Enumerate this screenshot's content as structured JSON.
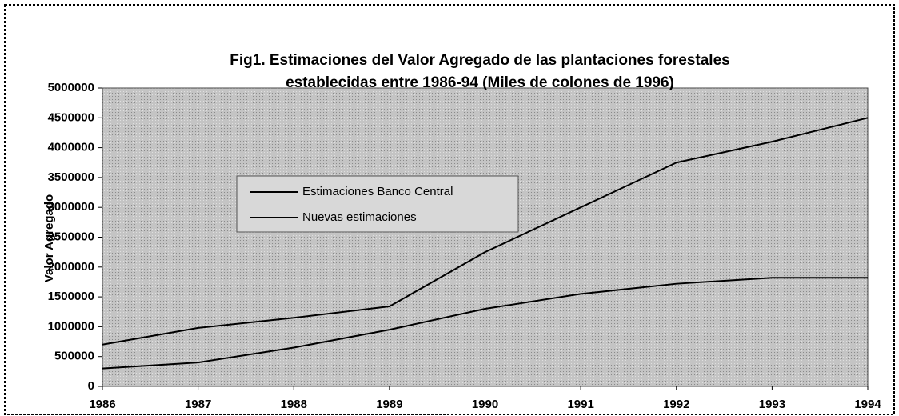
{
  "chart_data": {
    "type": "line",
    "title": [
      "Fig1. Estimaciones del Valor Agregado de las plantaciones forestales",
      "establecidas entre 1986-94 (Miles de colones de 1996)"
    ],
    "ylabel": "Valor Agregado",
    "x": [
      1986,
      1987,
      1988,
      1989,
      1990,
      1991,
      1992,
      1993,
      1994
    ],
    "series": [
      {
        "name": "Estimaciones Banco Central",
        "color": "#000000",
        "values": [
          700000,
          980000,
          1150000,
          1340000,
          2250000,
          3000000,
          3750000,
          4100000,
          4500000
        ]
      },
      {
        "name": "Nuevas estimaciones",
        "color": "#000000",
        "values": [
          300000,
          400000,
          650000,
          950000,
          1300000,
          1550000,
          1720000,
          1820000,
          1820000
        ]
      }
    ],
    "xlim": [
      1986,
      1994
    ],
    "xticks": [
      1986,
      1987,
      1988,
      1989,
      1990,
      1991,
      1992,
      1993,
      1994
    ],
    "ylim": [
      0,
      5000000
    ],
    "yticks": [
      0,
      500000,
      1000000,
      1500000,
      2000000,
      2500000,
      3000000,
      3500000,
      4000000,
      4500000,
      5000000
    ],
    "grid": false
  }
}
